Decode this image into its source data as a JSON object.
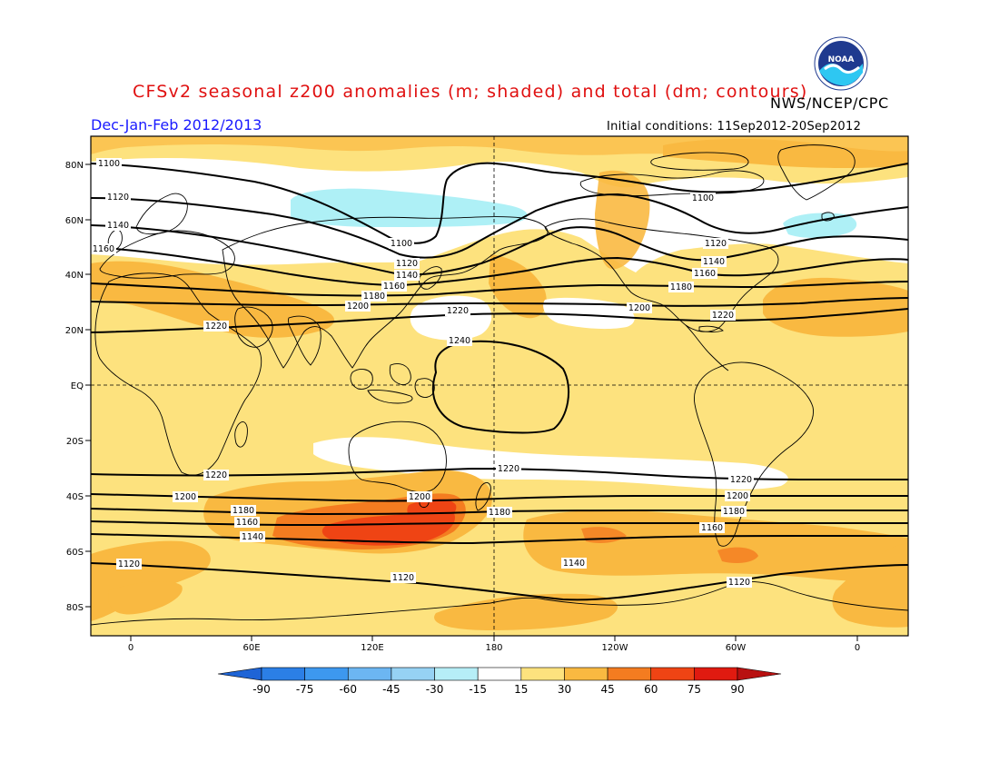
{
  "header": {
    "title": "CFSv2 seasonal z200 anomalies (m; shaded) and total (dm; contours)",
    "agency": "NWS/NCEP/CPC",
    "period": "Dec-Jan-Feb 2012/2013",
    "initial_conditions": "Initial conditions: 11Sep2012-20Sep2012",
    "logo_text": "NOAA"
  },
  "map": {
    "lat_labels": [
      "80N",
      "60N",
      "40N",
      "20N",
      "EQ",
      "20S",
      "40S",
      "60S",
      "80S"
    ],
    "lon_labels": [
      "0",
      "60E",
      "120E",
      "180",
      "120W",
      "60W",
      "0"
    ],
    "contour_labels": [
      "1100",
      "1120",
      "1140",
      "1160",
      "1180",
      "1200",
      "1220",
      "1240"
    ],
    "colors": {
      "background_anomaly": "#fde27e",
      "light_orange": "#f9b941",
      "orange": "#f47c20",
      "dark_orange": "#ef4414",
      "white_band": "#ffffff",
      "light_blue": "#aef0f6",
      "contour": "#000000",
      "coast": "#000000"
    }
  },
  "colorbar": {
    "labels": [
      "-90",
      "-75",
      "-60",
      "-45",
      "-30",
      "-15",
      "15",
      "30",
      "45",
      "60",
      "75",
      "90"
    ],
    "colors": [
      "#1e64d6",
      "#2b7fe6",
      "#3d98ef",
      "#6cb6f2",
      "#96d2f4",
      "#b6eef7",
      "#ffffff",
      "#fde27e",
      "#f9b941",
      "#f47c20",
      "#ef4414",
      "#e01a10",
      "#b81010"
    ]
  }
}
